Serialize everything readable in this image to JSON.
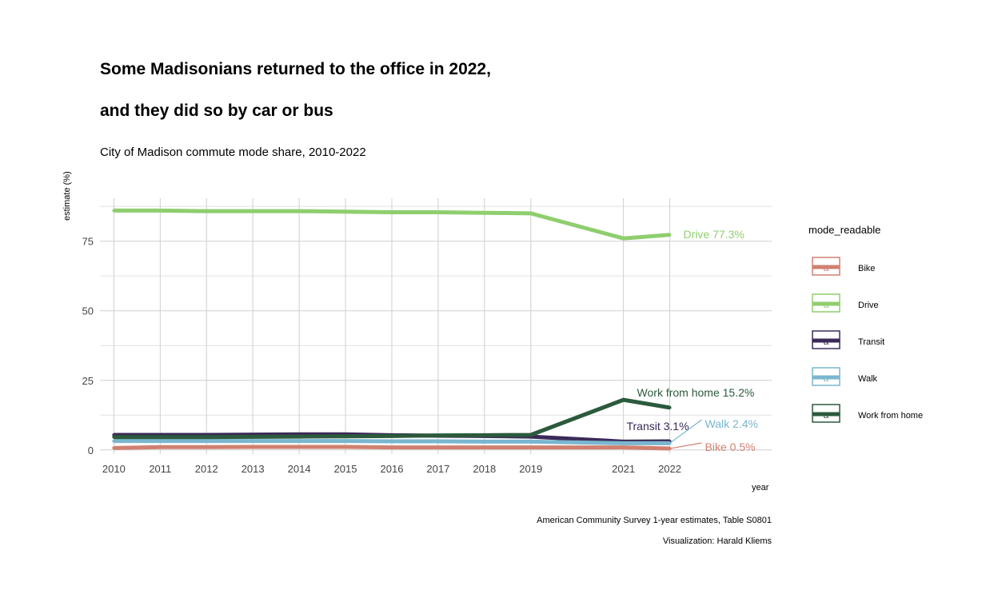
{
  "chart_data": {
    "type": "line",
    "title_line1": "Some Madisonians returned to the office in 2022,",
    "title_line2": "and they did so by car or bus",
    "subtitle": "City of Madison commute mode share, 2010-2022",
    "xlabel": "year",
    "ylabel": "estimate (%)",
    "caption_line1": "American Community Survey 1-year estimates, Table S0801",
    "caption_line2": "Visualization: Harald Kliems",
    "x": [
      2010,
      2011,
      2012,
      2013,
      2014,
      2015,
      2016,
      2017,
      2018,
      2019,
      2021,
      2022
    ],
    "x_tick_labels": [
      "2010",
      "2011",
      "2012",
      "2013",
      "2014",
      "2015",
      "2016",
      "2017",
      "2018",
      "2019",
      "2021",
      "2022"
    ],
    "xlim": [
      2009.7,
      2024.2
    ],
    "ylim": [
      -1.5,
      91
    ],
    "y_ticks": [
      0,
      25,
      50,
      75
    ],
    "y_tick_labels": [
      "0",
      "25",
      "50",
      "75"
    ],
    "grid": true,
    "legend_title": "mode_readable",
    "legend_position": "right",
    "legend_glyph": "a",
    "series": [
      {
        "name": "Bike",
        "color": "#d08070",
        "end_label": "Bike 0.5%",
        "values": [
          0.7,
          1.0,
          1.0,
          1.1,
          1.1,
          1.1,
          0.9,
          0.9,
          0.9,
          0.9,
          0.9,
          0.5
        ]
      },
      {
        "name": "Drive",
        "color": "#8fce6e",
        "end_label": "Drive 77.3%",
        "values": [
          86.0,
          86.0,
          85.8,
          85.8,
          85.8,
          85.6,
          85.4,
          85.4,
          85.2,
          85.0,
          76.0,
          77.3
        ]
      },
      {
        "name": "Transit",
        "color": "#3b2a58",
        "end_label": "Transit 3.1%",
        "values": [
          5.4,
          5.4,
          5.4,
          5.5,
          5.6,
          5.6,
          5.3,
          5.1,
          5.0,
          4.8,
          3.0,
          3.1
        ]
      },
      {
        "name": "Walk",
        "color": "#7ab6cf",
        "end_label": "Walk 2.4%",
        "values": [
          3.2,
          3.2,
          3.2,
          3.2,
          3.2,
          3.2,
          3.1,
          3.1,
          3.0,
          3.0,
          2.4,
          2.4
        ]
      },
      {
        "name": "Work from home",
        "color": "#2b5a3c",
        "end_label": "Work from home 15.2%",
        "values": [
          4.6,
          4.6,
          4.6,
          4.7,
          4.8,
          4.9,
          5.0,
          5.2,
          5.3,
          5.4,
          18.0,
          15.2
        ]
      }
    ]
  }
}
